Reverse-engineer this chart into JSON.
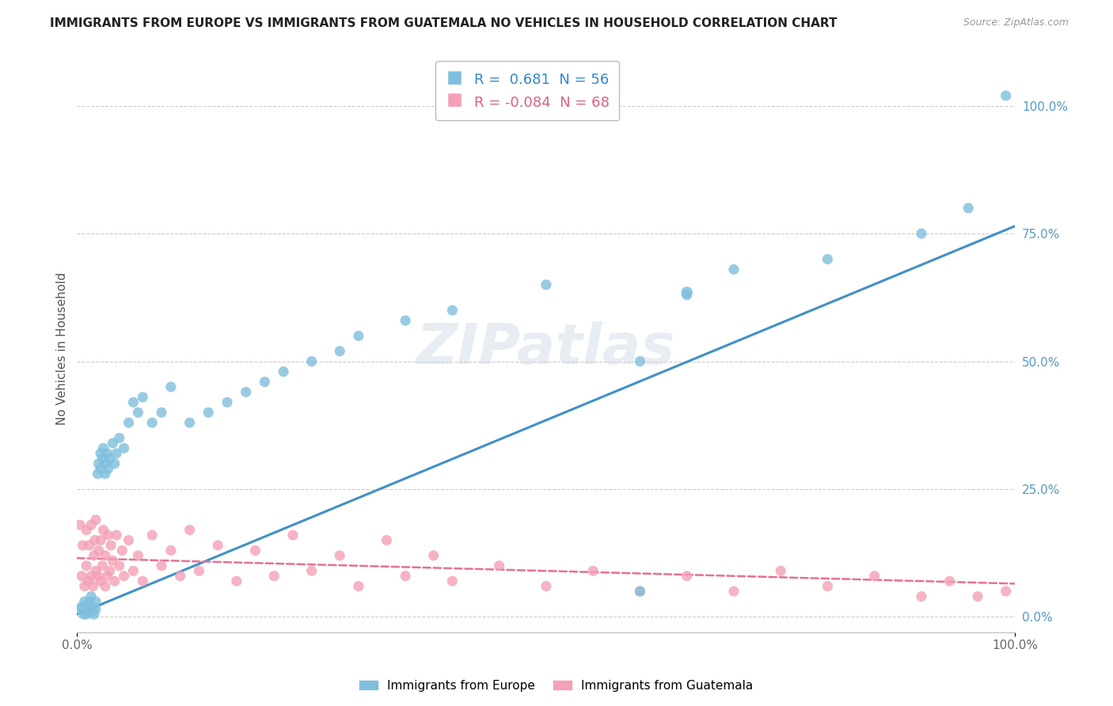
{
  "title": "IMMIGRANTS FROM EUROPE VS IMMIGRANTS FROM GUATEMALA NO VEHICLES IN HOUSEHOLD CORRELATION CHART",
  "source": "Source: ZipAtlas.com",
  "ylabel": "No Vehicles in Household",
  "r_europe": 0.681,
  "n_europe": 56,
  "r_guatemala": -0.084,
  "n_guatemala": 68,
  "color_europe": "#7fbfdd",
  "color_guatemala": "#f4a0b5",
  "color_europe_line": "#4090c8",
  "color_guatemala_line": "#e87090",
  "right_ytick_labels": [
    "0.0%",
    "25.0%",
    "50.0%",
    "75.0%",
    "100.0%"
  ],
  "right_ytick_values": [
    0.0,
    0.25,
    0.5,
    0.75,
    1.0
  ],
  "xlim": [
    0.0,
    1.0
  ],
  "ylim": [
    -0.03,
    1.08
  ],
  "eu_slope": 0.76,
  "eu_intercept": 0.005,
  "gt_slope": -0.05,
  "gt_intercept": 0.115,
  "eu_x": [
    0.003,
    0.005,
    0.007,
    0.008,
    0.01,
    0.01,
    0.012,
    0.013,
    0.015,
    0.015,
    0.017,
    0.018,
    0.02,
    0.02,
    0.022,
    0.023,
    0.025,
    0.025,
    0.027,
    0.028,
    0.03,
    0.03,
    0.032,
    0.033,
    0.035,
    0.038,
    0.04,
    0.042,
    0.045,
    0.05,
    0.055,
    0.06,
    0.065,
    0.07,
    0.08,
    0.09,
    0.1,
    0.12,
    0.14,
    0.16,
    0.18,
    0.2,
    0.22,
    0.25,
    0.28,
    0.3,
    0.35,
    0.4,
    0.5,
    0.6,
    0.65,
    0.7,
    0.8,
    0.9,
    0.95,
    0.99
  ],
  "eu_y": [
    0.015,
    0.02,
    0.005,
    0.03,
    0.005,
    0.01,
    0.02,
    0.03,
    0.04,
    0.01,
    0.02,
    0.005,
    0.015,
    0.03,
    0.28,
    0.3,
    0.29,
    0.32,
    0.31,
    0.33,
    0.3,
    0.28,
    0.32,
    0.29,
    0.31,
    0.34,
    0.3,
    0.32,
    0.35,
    0.33,
    0.38,
    0.42,
    0.4,
    0.43,
    0.38,
    0.4,
    0.45,
    0.38,
    0.4,
    0.42,
    0.44,
    0.46,
    0.48,
    0.5,
    0.52,
    0.55,
    0.58,
    0.6,
    0.65,
    0.5,
    0.63,
    0.68,
    0.7,
    0.75,
    0.8,
    1.02
  ],
  "gt_x": [
    0.003,
    0.005,
    0.006,
    0.008,
    0.01,
    0.01,
    0.012,
    0.013,
    0.015,
    0.015,
    0.017,
    0.018,
    0.019,
    0.02,
    0.02,
    0.022,
    0.023,
    0.025,
    0.025,
    0.027,
    0.028,
    0.03,
    0.03,
    0.032,
    0.033,
    0.035,
    0.036,
    0.038,
    0.04,
    0.042,
    0.045,
    0.048,
    0.05,
    0.055,
    0.06,
    0.065,
    0.07,
    0.08,
    0.09,
    0.1,
    0.11,
    0.12,
    0.13,
    0.15,
    0.17,
    0.19,
    0.21,
    0.23,
    0.25,
    0.28,
    0.3,
    0.33,
    0.35,
    0.38,
    0.4,
    0.45,
    0.5,
    0.55,
    0.6,
    0.65,
    0.7,
    0.75,
    0.8,
    0.85,
    0.9,
    0.93,
    0.96,
    0.99
  ],
  "gt_y": [
    0.18,
    0.08,
    0.14,
    0.06,
    0.1,
    0.17,
    0.07,
    0.14,
    0.08,
    0.18,
    0.06,
    0.12,
    0.15,
    0.09,
    0.19,
    0.08,
    0.13,
    0.07,
    0.15,
    0.1,
    0.17,
    0.06,
    0.12,
    0.08,
    0.16,
    0.09,
    0.14,
    0.11,
    0.07,
    0.16,
    0.1,
    0.13,
    0.08,
    0.15,
    0.09,
    0.12,
    0.07,
    0.16,
    0.1,
    0.13,
    0.08,
    0.17,
    0.09,
    0.14,
    0.07,
    0.13,
    0.08,
    0.16,
    0.09,
    0.12,
    0.06,
    0.15,
    0.08,
    0.12,
    0.07,
    0.1,
    0.06,
    0.09,
    0.05,
    0.08,
    0.05,
    0.09,
    0.06,
    0.08,
    0.04,
    0.07,
    0.04,
    0.05
  ],
  "lone_blue_x": [
    0.6
  ],
  "lone_blue_y": [
    0.05
  ],
  "outlier_blue_x": [
    0.65
  ],
  "outlier_blue_y": [
    0.635
  ]
}
